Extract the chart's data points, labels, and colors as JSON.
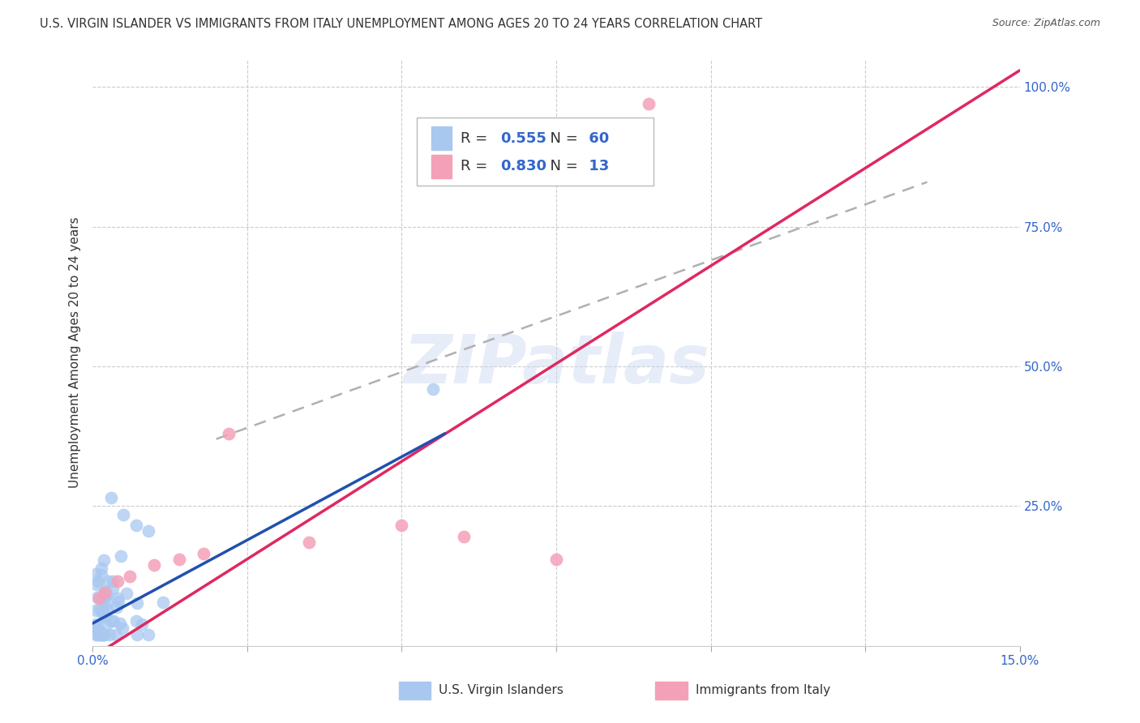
{
  "title": "U.S. VIRGIN ISLANDER VS IMMIGRANTS FROM ITALY UNEMPLOYMENT AMONG AGES 20 TO 24 YEARS CORRELATION CHART",
  "source": "Source: ZipAtlas.com",
  "ylabel": "Unemployment Among Ages 20 to 24 years",
  "xlim": [
    0.0,
    0.15
  ],
  "ylim": [
    0.0,
    1.05
  ],
  "xtick_positions": [
    0.0,
    0.025,
    0.05,
    0.075,
    0.1,
    0.125,
    0.15
  ],
  "xtick_labels": [
    "0.0%",
    "",
    "",
    "",
    "",
    "",
    "15.0%"
  ],
  "yticks_right": [
    0.25,
    0.5,
    0.75,
    1.0
  ],
  "ytick_right_labels": [
    "25.0%",
    "50.0%",
    "75.0%",
    "100.0%"
  ],
  "legend1_label": "U.S. Virgin Islanders",
  "legend2_label": "Immigrants from Italy",
  "R1": 0.555,
  "N1": 60,
  "R2": 0.83,
  "N2": 13,
  "color_blue": "#A8C8F0",
  "color_pink": "#F4A0B8",
  "color_blue_line": "#2050B0",
  "color_pink_line": "#E02860",
  "color_dashed": "#B0B0B0",
  "watermark": "ZIPatlas",
  "background_color": "#FFFFFF",
  "blue_line_x": [
    0.0,
    0.057
  ],
  "blue_line_y": [
    0.04,
    0.38
  ],
  "pink_line_x": [
    0.0,
    0.15
  ],
  "pink_line_y": [
    -0.02,
    1.03
  ],
  "dash_line_x": [
    0.02,
    0.135
  ],
  "dash_line_y": [
    0.37,
    0.83
  ]
}
